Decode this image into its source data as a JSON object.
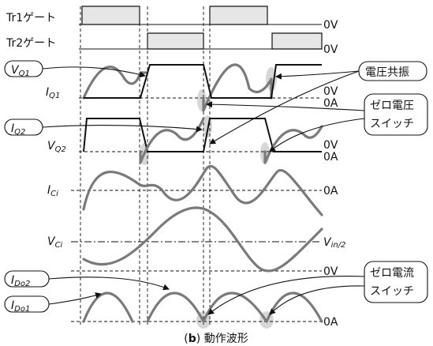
{
  "signals": {
    "tr1_gate": "Tr1ゲート",
    "tr2_gate": "Tr2ゲート",
    "vq1": "V",
    "vq1_sub": "Q1",
    "iq1": "I",
    "iq1_sub": "Q1",
    "iq2": "I",
    "iq2_sub": "Q2",
    "vq2": "V",
    "vq2_sub": "Q2",
    "ici": "I",
    "ici_sub": "Ci",
    "vci": "V",
    "vci_sub": "Ci",
    "ido2": "I",
    "ido2_sub": "Do2",
    "ido1": "I",
    "ido1_sub": "Do1"
  },
  "levels": {
    "zero_v": "0V",
    "zero_a": "0A",
    "vin_half_main": "V",
    "vin_half_sub": "in/2"
  },
  "callouts": {
    "resonance": "電圧共振",
    "zvs_line1": "ゼロ電圧",
    "zvs_line2": "スイッチ",
    "zcs_line1": "ゼロ電流",
    "zcs_line2": "スイッチ"
  },
  "caption": {
    "letter": "b",
    "text": "動作波形"
  },
  "colors": {
    "waveform": "#7a7a7a",
    "ink": "#111111",
    "gate_fill": "#e6e6e6",
    "highlight": "#c9c9c9"
  }
}
